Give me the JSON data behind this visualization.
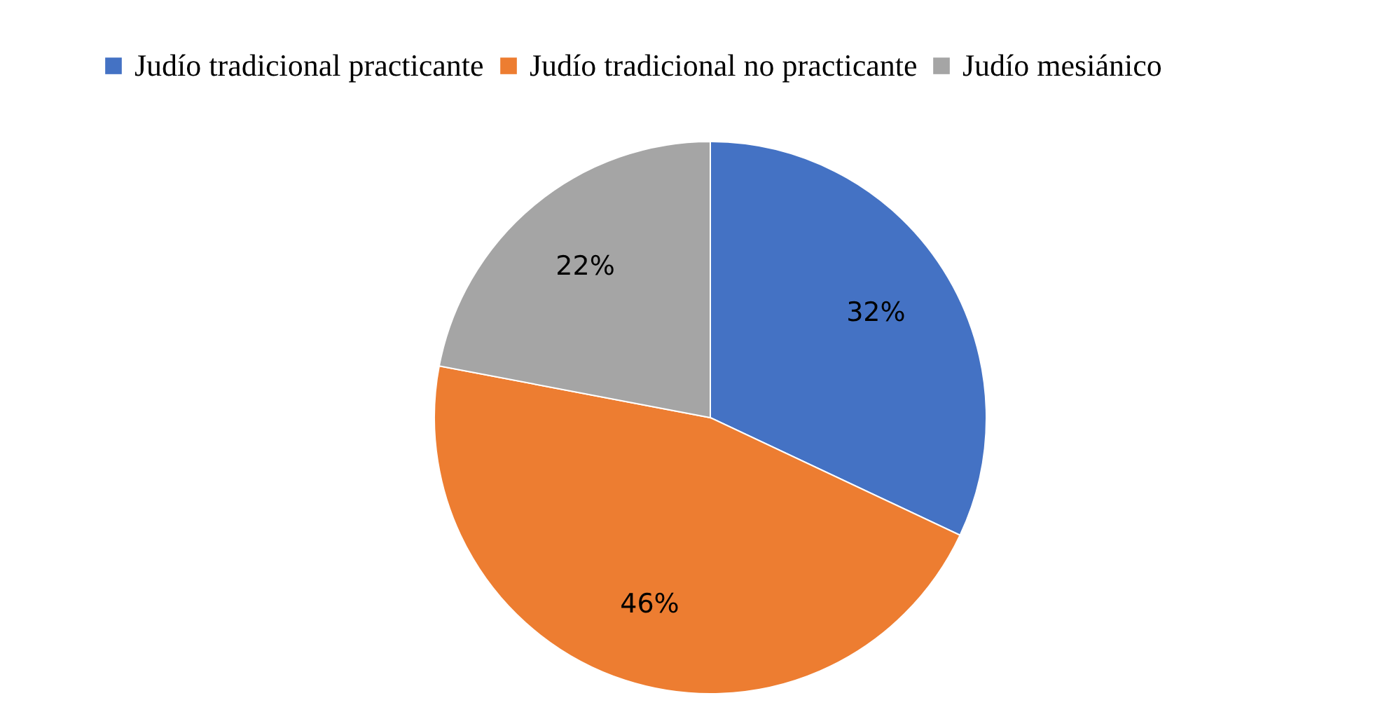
{
  "chart_data": {
    "type": "pie",
    "categories": [
      "Judío tradicional practicante",
      "Judío tradicional no practicante",
      "Judío mesiánico"
    ],
    "values": [
      32,
      46,
      22
    ],
    "colors": [
      "#4472c4",
      "#ed7d31",
      "#a5a5a5"
    ],
    "value_labels": [
      "32%",
      "46%",
      "22%"
    ],
    "legend": "top"
  }
}
